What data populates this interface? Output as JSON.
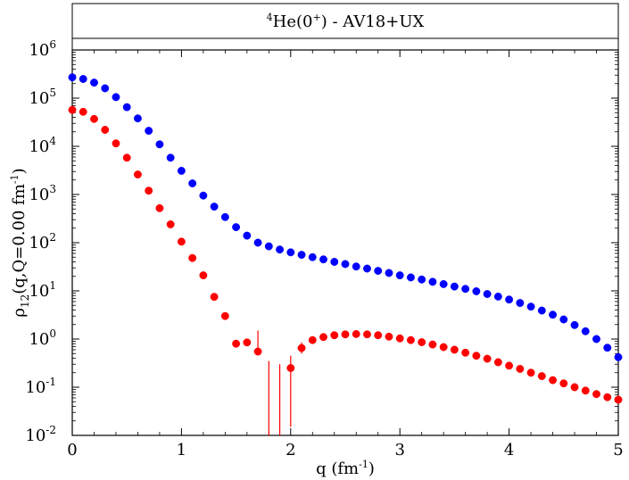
{
  "chart_data": {
    "type": "scatter",
    "title": {
      "superscript": "4",
      "nucleus": "He(0",
      "state_sup": "+",
      "suffix": ") - AV18+UX"
    },
    "xlabel": {
      "main": "q (fm",
      "sup": "-1",
      "tail": ")"
    },
    "ylabel": {
      "main": "ρ",
      "sub": "12",
      "mid": "(q,Q=0.00 fm",
      "sup": "-1",
      "tail": ")"
    },
    "xlim": [
      0,
      5
    ],
    "ylim": [
      0.01,
      1000000
    ],
    "yscale": "log",
    "xticks": [
      {
        "value": 0,
        "label": "0"
      },
      {
        "value": 1,
        "label": "1"
      },
      {
        "value": 2,
        "label": "2"
      },
      {
        "value": 3,
        "label": "3"
      },
      {
        "value": 4,
        "label": "4"
      },
      {
        "value": 5,
        "label": "5"
      }
    ],
    "yticks": [
      {
        "value": 0.01,
        "base": "10",
        "exp": "-2"
      },
      {
        "value": 0.1,
        "base": "10",
        "exp": "-1"
      },
      {
        "value": 1,
        "base": "10",
        "exp": "0"
      },
      {
        "value": 10,
        "base": "10",
        "exp": "1"
      },
      {
        "value": 100,
        "base": "10",
        "exp": "2"
      },
      {
        "value": 1000,
        "base": "10",
        "exp": "3"
      },
      {
        "value": 10000,
        "base": "10",
        "exp": "4"
      },
      {
        "value": 100000,
        "base": "10",
        "exp": "5"
      },
      {
        "value": 1000000,
        "base": "10",
        "exp": "6"
      }
    ],
    "series": [
      {
        "color": "#0000ff",
        "x": [
          0,
          0.1,
          0.2,
          0.3,
          0.4,
          0.5,
          0.6,
          0.7,
          0.8,
          0.9,
          1.0,
          1.1,
          1.2,
          1.3,
          1.4,
          1.5,
          1.6,
          1.7,
          1.8,
          1.9,
          2.0,
          2.1,
          2.2,
          2.3,
          2.4,
          2.5,
          2.6,
          2.7,
          2.8,
          2.9,
          3.0,
          3.1,
          3.2,
          3.3,
          3.4,
          3.5,
          3.6,
          3.7,
          3.8,
          3.9,
          4.0,
          4.1,
          4.2,
          4.3,
          4.4,
          4.5,
          4.6,
          4.7,
          4.8,
          4.9,
          5.0
        ],
        "y": [
          270000,
          250000,
          210000,
          160000,
          105000,
          65000,
          38000,
          21000,
          11000,
          5800,
          3100,
          1700,
          950,
          560,
          340,
          210,
          140,
          100,
          84,
          72,
          63,
          56,
          50,
          45,
          40,
          36,
          32,
          29,
          26,
          23.5,
          21,
          19,
          17.2,
          15.4,
          13.8,
          12.3,
          11,
          9.8,
          8.6,
          7.6,
          6.6,
          5.6,
          4.7,
          3.9,
          3.2,
          2.55,
          1.95,
          1.45,
          1.0,
          0.66,
          0.42
        ]
      },
      {
        "color": "#ff0000",
        "x": [
          0,
          0.1,
          0.2,
          0.3,
          0.4,
          0.5,
          0.6,
          0.7,
          0.8,
          0.9,
          1.0,
          1.1,
          1.2,
          1.3,
          1.4,
          1.5,
          1.6,
          1.7,
          2.0,
          2.1,
          2.2,
          2.3,
          2.4,
          2.5,
          2.6,
          2.7,
          2.8,
          2.9,
          3.0,
          3.1,
          3.2,
          3.3,
          3.4,
          3.5,
          3.6,
          3.7,
          3.8,
          3.9,
          4.0,
          4.1,
          4.2,
          4.3,
          4.4,
          4.5,
          4.6,
          4.7,
          4.8,
          4.9,
          5.0
        ],
        "y": [
          57000,
          52000,
          37000,
          22000,
          11500,
          5800,
          2600,
          1200,
          520,
          240,
          105,
          48,
          21,
          7.5,
          3,
          0.8,
          0.85,
          0.55,
          0.25,
          0.65,
          0.95,
          1.1,
          1.2,
          1.25,
          1.27,
          1.25,
          1.2,
          1.12,
          1.03,
          0.95,
          0.86,
          0.77,
          0.68,
          0.6,
          0.52,
          0.45,
          0.39,
          0.33,
          0.28,
          0.24,
          0.2,
          0.17,
          0.14,
          0.12,
          0.1,
          0.085,
          0.072,
          0.062,
          0.055
        ],
        "error_bars": [
          {
            "x": 1.7,
            "low": 0.55,
            "high": 1.5
          },
          {
            "x": 1.8,
            "low": 0.01,
            "high": 0.35
          },
          {
            "x": 1.9,
            "low": 0.01,
            "high": 0.3
          },
          {
            "x": 2.0,
            "low": 0.015,
            "high": 0.45
          },
          {
            "x": 2.1,
            "low": 0.5,
            "high": 0.85
          }
        ]
      }
    ]
  }
}
